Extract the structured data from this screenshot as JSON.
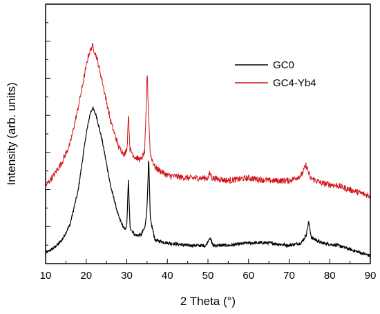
{
  "chart_data": {
    "type": "line",
    "title": "",
    "xlabel": "2 Theta (°)",
    "ylabel": "Intensity (arb. units)",
    "xlim": [
      10,
      90
    ],
    "ylim": [
      0,
      1
    ],
    "x_ticks": [
      10,
      20,
      30,
      40,
      50,
      60,
      70,
      80,
      90
    ],
    "y_tick_labels": "none",
    "grid": false,
    "legend": "top-right",
    "series": [
      {
        "name": "GC0",
        "color": "#000000",
        "noise": 0.006,
        "points": [
          [
            10,
            0.04
          ],
          [
            12,
            0.06
          ],
          [
            14,
            0.09
          ],
          [
            16,
            0.15
          ],
          [
            18,
            0.28
          ],
          [
            19,
            0.39
          ],
          [
            20,
            0.5
          ],
          [
            21,
            0.58
          ],
          [
            21.6,
            0.6
          ],
          [
            22.5,
            0.57
          ],
          [
            24,
            0.47
          ],
          [
            26,
            0.3
          ],
          [
            28,
            0.18
          ],
          [
            29.5,
            0.13
          ],
          [
            30,
            0.15
          ],
          [
            30.4,
            0.32
          ],
          [
            30.8,
            0.14
          ],
          [
            32,
            0.11
          ],
          [
            33.5,
            0.11
          ],
          [
            34.5,
            0.14
          ],
          [
            35.0,
            0.22
          ],
          [
            35.4,
            0.41
          ],
          [
            35.8,
            0.17
          ],
          [
            37,
            0.09
          ],
          [
            40,
            0.08
          ],
          [
            45,
            0.07
          ],
          [
            49.5,
            0.07
          ],
          [
            50.4,
            0.1
          ],
          [
            51.3,
            0.07
          ],
          [
            55,
            0.07
          ],
          [
            60,
            0.08
          ],
          [
            62,
            0.08
          ],
          [
            65,
            0.08
          ],
          [
            70,
            0.07
          ],
          [
            73,
            0.08
          ],
          [
            74.2,
            0.11
          ],
          [
            74.8,
            0.16
          ],
          [
            75.5,
            0.1
          ],
          [
            78,
            0.08
          ],
          [
            82,
            0.07
          ],
          [
            86,
            0.05
          ],
          [
            90,
            0.03
          ]
        ]
      },
      {
        "name": "GC4-Yb4",
        "color": "#d0161b",
        "noise": 0.012,
        "points": [
          [
            10,
            0.3
          ],
          [
            12,
            0.34
          ],
          [
            14,
            0.39
          ],
          [
            16,
            0.46
          ],
          [
            18,
            0.6
          ],
          [
            19.5,
            0.72
          ],
          [
            20.5,
            0.8
          ],
          [
            21.5,
            0.84
          ],
          [
            22.5,
            0.8
          ],
          [
            24,
            0.7
          ],
          [
            26,
            0.55
          ],
          [
            28,
            0.45
          ],
          [
            29.5,
            0.42
          ],
          [
            30.1,
            0.45
          ],
          [
            30.4,
            0.58
          ],
          [
            30.8,
            0.44
          ],
          [
            32,
            0.41
          ],
          [
            33.5,
            0.4
          ],
          [
            34.4,
            0.43
          ],
          [
            34.8,
            0.6
          ],
          [
            35.0,
            0.75
          ],
          [
            35.3,
            0.6
          ],
          [
            35.8,
            0.42
          ],
          [
            37,
            0.37
          ],
          [
            40,
            0.34
          ],
          [
            45,
            0.33
          ],
          [
            50,
            0.33
          ],
          [
            50.5,
            0.35
          ],
          [
            51,
            0.33
          ],
          [
            55,
            0.32
          ],
          [
            60,
            0.33
          ],
          [
            65,
            0.32
          ],
          [
            70,
            0.32
          ],
          [
            73,
            0.34
          ],
          [
            74.2,
            0.38
          ],
          [
            75.2,
            0.33
          ],
          [
            78,
            0.31
          ],
          [
            82,
            0.3
          ],
          [
            86,
            0.28
          ],
          [
            90,
            0.26
          ]
        ]
      }
    ]
  }
}
